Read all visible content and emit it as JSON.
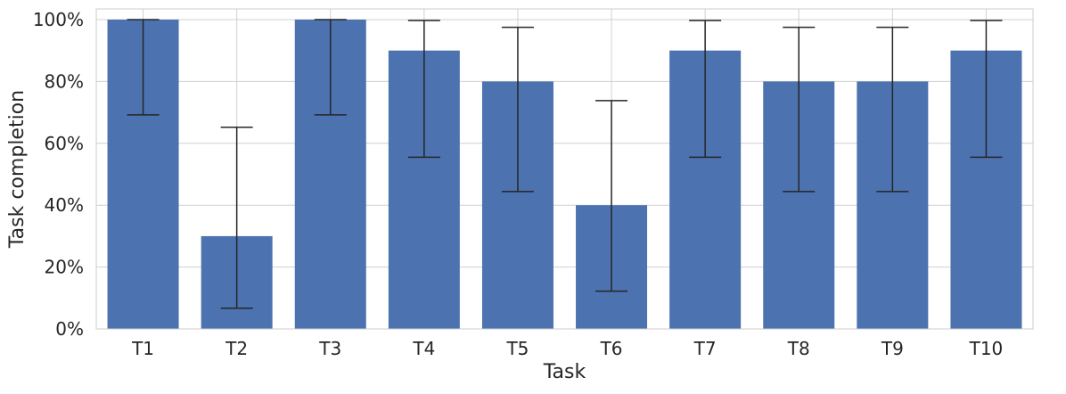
{
  "chart_data": {
    "type": "bar",
    "categories": [
      "T1",
      "T2",
      "T3",
      "T4",
      "T5",
      "T6",
      "T7",
      "T8",
      "T9",
      "T10"
    ],
    "values": [
      100,
      30,
      100,
      90,
      80,
      40,
      90,
      80,
      80,
      90
    ],
    "error_low": [
      69.2,
      6.7,
      69.2,
      55.5,
      44.4,
      12.2,
      55.5,
      44.4,
      44.4,
      55.5
    ],
    "error_high": [
      100,
      65.2,
      100,
      99.7,
      97.5,
      73.8,
      99.7,
      97.5,
      97.5,
      99.7
    ],
    "title": "",
    "xlabel": "Task",
    "ylabel": "Task completion",
    "ylim": [
      0,
      100
    ],
    "yticks": [
      0,
      20,
      40,
      60,
      80,
      100
    ],
    "ytick_labels": [
      "0%",
      "20%",
      "40%",
      "60%",
      "80%",
      "100%"
    ],
    "grid": true,
    "bar_color": "#4c72b0",
    "error_color": "#262626",
    "grid_color": "#d0d0d0",
    "frame_color": "#cccccc"
  }
}
